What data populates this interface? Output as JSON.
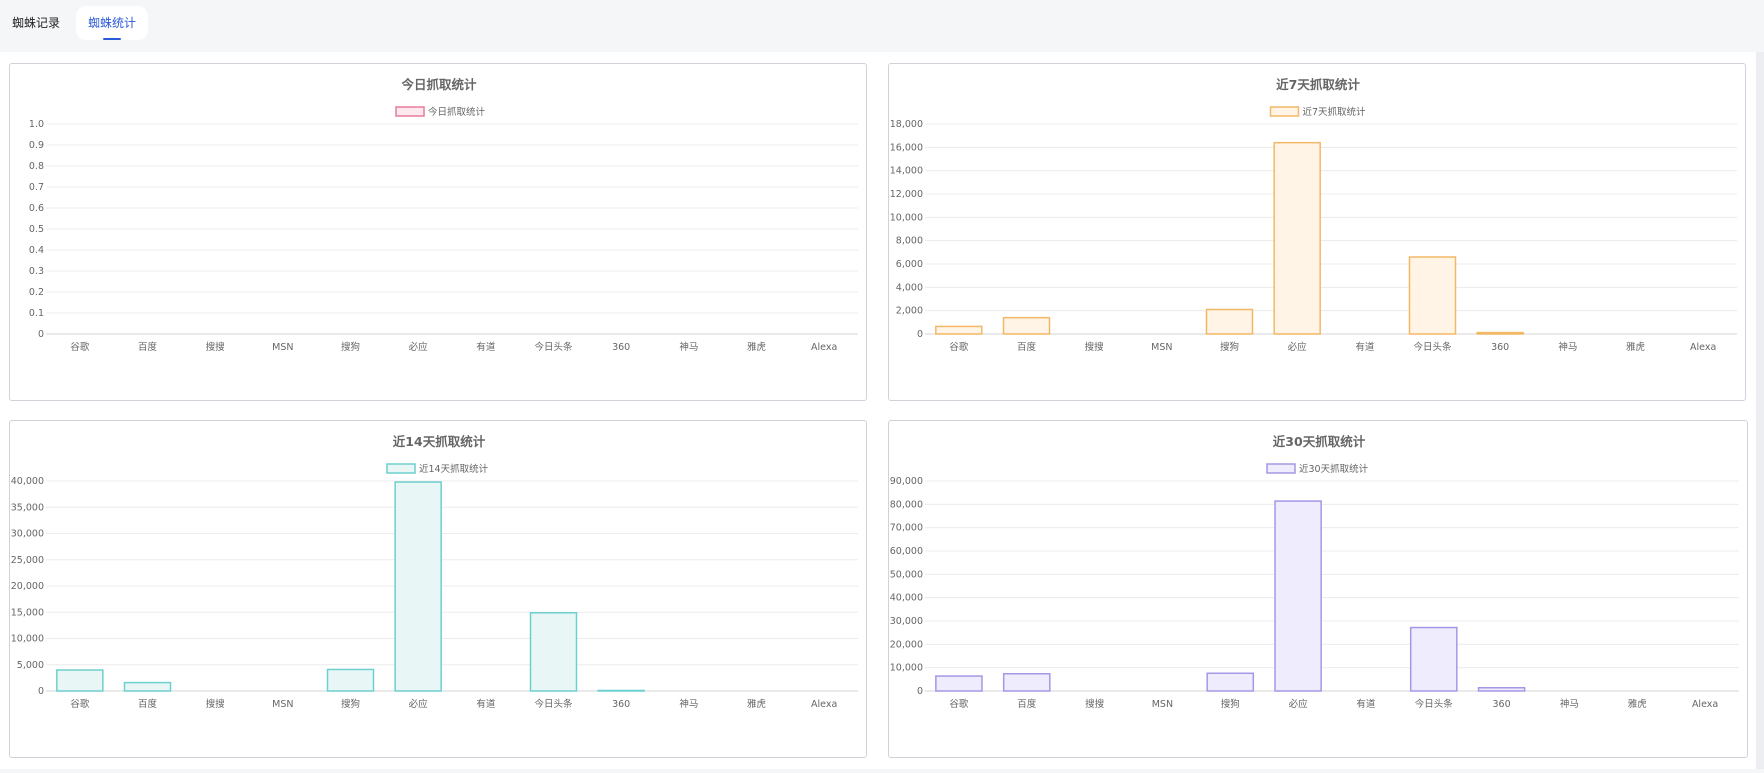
{
  "tabs": {
    "records_label": "蜘蛛记录",
    "stats_label": "蜘蛛统计",
    "active": "stats"
  },
  "chart_data": [
    {
      "type": "bar",
      "title": "今日抓取统计",
      "categories": [
        "谷歌",
        "百度",
        "搜搜",
        "MSN",
        "搜狗",
        "必应",
        "有道",
        "今日头条",
        "360",
        "神马",
        "雅虎",
        "Alexa"
      ],
      "series": [
        {
          "name": "今日抓取统计",
          "values": [
            0,
            0,
            0,
            0,
            0,
            0,
            0,
            0,
            0,
            0,
            0,
            0
          ]
        }
      ],
      "ylim": [
        0,
        1.0
      ],
      "yticks": [
        "0",
        "0.1",
        "0.2",
        "0.3",
        "0.4",
        "0.5",
        "0.6",
        "0.7",
        "0.8",
        "0.9",
        "1.0"
      ],
      "grid": true,
      "legend_position": "top-center",
      "border_color": "#e87c9a",
      "fill_color": "#fde9ee"
    },
    {
      "type": "bar",
      "title": "近7天抓取统计",
      "categories": [
        "谷歌",
        "百度",
        "搜搜",
        "MSN",
        "搜狗",
        "必应",
        "有道",
        "今日头条",
        "360",
        "神马",
        "雅虎",
        "Alexa"
      ],
      "series": [
        {
          "name": "近7天抓取统计",
          "values": [
            650,
            1400,
            0,
            0,
            2100,
            16400,
            0,
            6600,
            120,
            0,
            0,
            0
          ]
        }
      ],
      "ylim": [
        0,
        18000
      ],
      "yticks": [
        "0",
        "2,000",
        "4,000",
        "6,000",
        "8,000",
        "10,000",
        "12,000",
        "14,000",
        "16,000",
        "18,000"
      ],
      "grid": true,
      "legend_position": "top-center",
      "border_color": "#f2b866",
      "fill_color": "#fff4e5"
    },
    {
      "type": "bar",
      "title": "近14天抓取统计",
      "categories": [
        "谷歌",
        "百度",
        "搜搜",
        "MSN",
        "搜狗",
        "必应",
        "有道",
        "今日头条",
        "360",
        "神马",
        "雅虎",
        "Alexa"
      ],
      "series": [
        {
          "name": "近14天抓取统计",
          "values": [
            4000,
            1600,
            0,
            0,
            4100,
            39800,
            0,
            14900,
            100,
            0,
            0,
            0
          ]
        }
      ],
      "ylim": [
        0,
        40000
      ],
      "yticks": [
        "0",
        "5,000",
        "10,000",
        "15,000",
        "20,000",
        "25,000",
        "30,000",
        "35,000",
        "40,000"
      ],
      "grid": true,
      "legend_position": "top-center",
      "border_color": "#6dcfcf",
      "fill_color": "#e8f7f5"
    },
    {
      "type": "bar",
      "title": "近30天抓取统计",
      "categories": [
        "谷歌",
        "百度",
        "搜搜",
        "MSN",
        "搜狗",
        "必应",
        "有道",
        "今日头条",
        "360",
        "神马",
        "雅虎",
        "Alexa"
      ],
      "series": [
        {
          "name": "近30天抓取统计",
          "values": [
            6400,
            7400,
            0,
            0,
            7600,
            81400,
            0,
            27200,
            1400,
            0,
            0,
            0
          ]
        }
      ],
      "ylim": [
        0,
        90000
      ],
      "yticks": [
        "0",
        "10,000",
        "20,000",
        "30,000",
        "40,000",
        "50,000",
        "60,000",
        "70,000",
        "80,000",
        "90,000"
      ],
      "grid": true,
      "legend_position": "top-center",
      "border_color": "#a796e6",
      "fill_color": "#efecfd"
    }
  ]
}
